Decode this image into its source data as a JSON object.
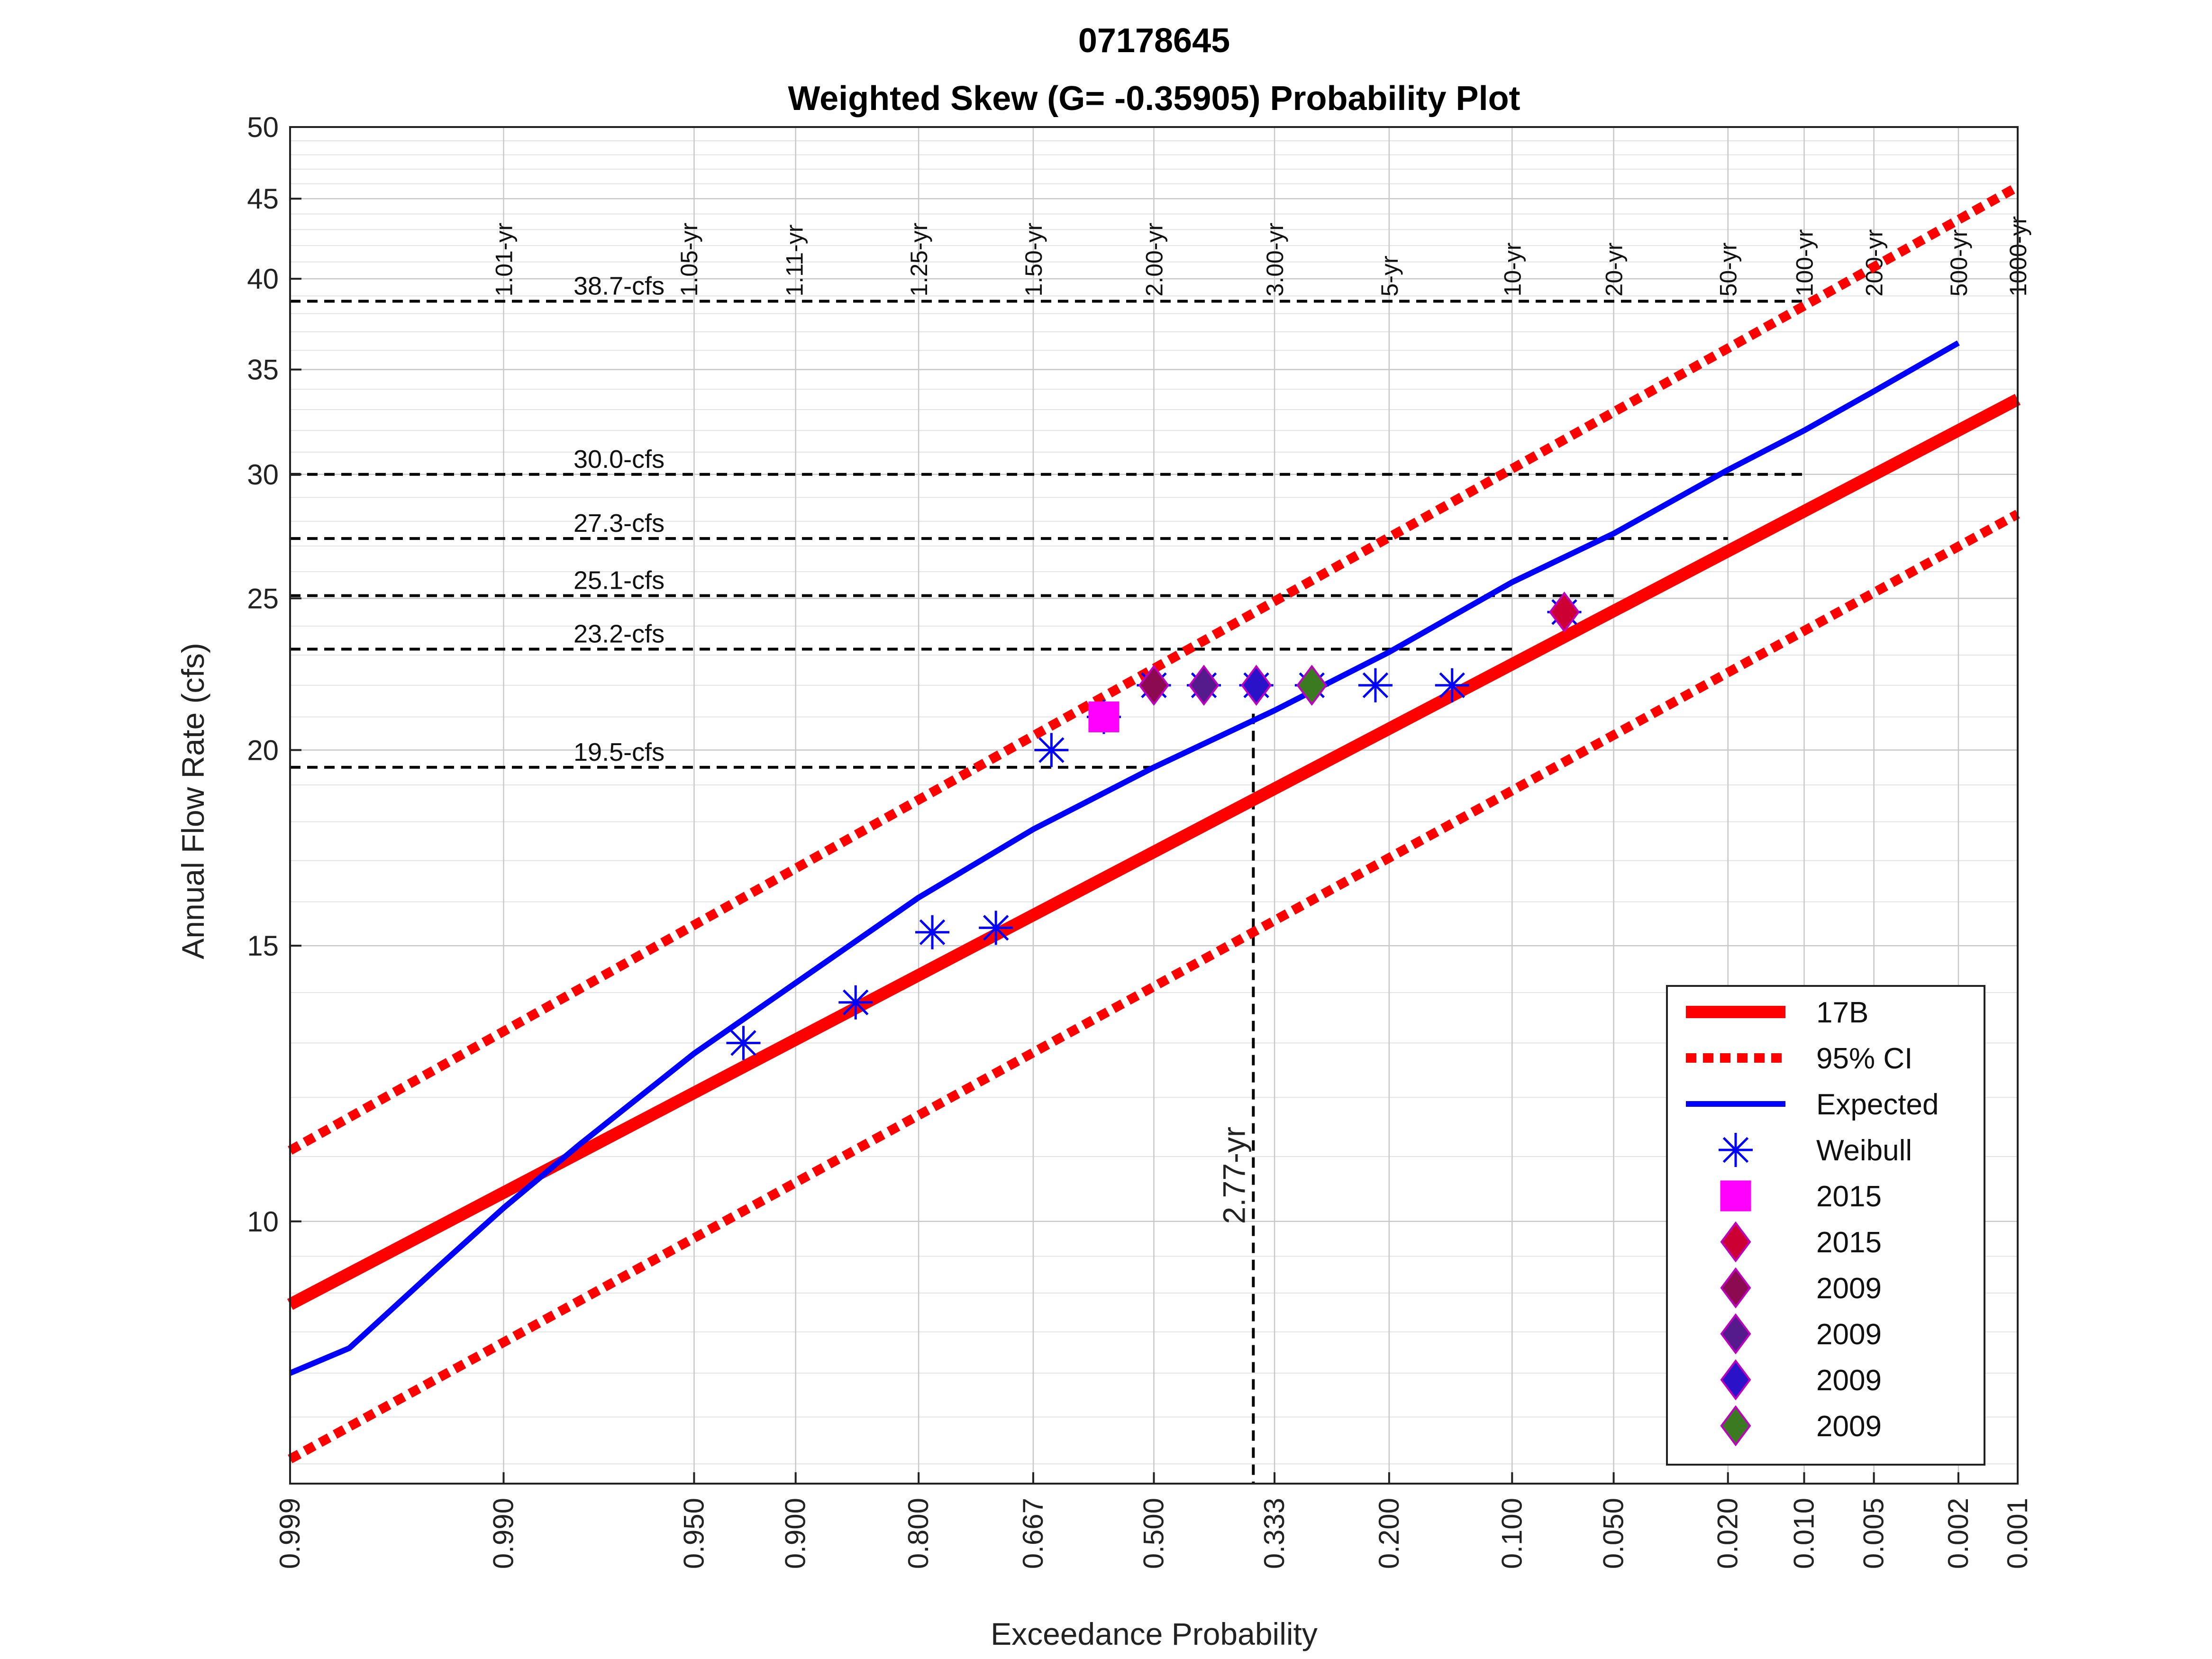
{
  "chart_data": {
    "type": "line",
    "title": "07178645",
    "subtitle": "Weighted Skew (G= -0.35905) Probability Plot",
    "xlabel": "Exceedance Probability",
    "ylabel": "Annual Flow Rate (cfs)",
    "x_scale": "normal-probability (reversed)",
    "y_scale": "log",
    "ylim": [
      6.8,
      50
    ],
    "xlim": [
      0.999,
      0.001
    ],
    "grid": true,
    "legend_position": "bottom-right",
    "x_ticks": [
      {
        "p": 0.999,
        "label": "0.999"
      },
      {
        "p": 0.99,
        "label": "0.990"
      },
      {
        "p": 0.95,
        "label": "0.950"
      },
      {
        "p": 0.9,
        "label": "0.900"
      },
      {
        "p": 0.8,
        "label": "0.800"
      },
      {
        "p": 0.667,
        "label": "0.667"
      },
      {
        "p": 0.5,
        "label": "0.500"
      },
      {
        "p": 0.333,
        "label": "0.333"
      },
      {
        "p": 0.2,
        "label": "0.200"
      },
      {
        "p": 0.1,
        "label": "0.100"
      },
      {
        "p": 0.05,
        "label": "0.050"
      },
      {
        "p": 0.02,
        "label": "0.020"
      },
      {
        "p": 0.01,
        "label": "0.010"
      },
      {
        "p": 0.005,
        "label": "0.005"
      },
      {
        "p": 0.002,
        "label": "0.002"
      },
      {
        "p": 0.001,
        "label": "0.001"
      }
    ],
    "y_ticks": [
      {
        "v": 10,
        "label": "10"
      },
      {
        "v": 15,
        "label": "15"
      },
      {
        "v": 20,
        "label": "20"
      },
      {
        "v": 25,
        "label": "25"
      },
      {
        "v": 30,
        "label": "30"
      },
      {
        "v": 35,
        "label": "35"
      },
      {
        "v": 40,
        "label": "40"
      },
      {
        "v": 45,
        "label": "45"
      },
      {
        "v": 50,
        "label": "50"
      }
    ],
    "return_period_labels": [
      {
        "p": 0.99,
        "label": "1.01-yr"
      },
      {
        "p": 0.952,
        "label": "1.05-yr"
      },
      {
        "p": 0.901,
        "label": "1.11-yr"
      },
      {
        "p": 0.8,
        "label": "1.25-yr"
      },
      {
        "p": 0.667,
        "label": "1.50-yr"
      },
      {
        "p": 0.5,
        "label": "2.00-yr"
      },
      {
        "p": 0.333,
        "label": "3.00-yr"
      },
      {
        "p": 0.2,
        "label": "5-yr"
      },
      {
        "p": 0.1,
        "label": "10-yr"
      },
      {
        "p": 0.05,
        "label": "20-yr"
      },
      {
        "p": 0.02,
        "label": "50-yr"
      },
      {
        "p": 0.01,
        "label": "100-yr"
      },
      {
        "p": 0.005,
        "label": "200-yr"
      },
      {
        "p": 0.002,
        "label": "500-yr"
      },
      {
        "p": 0.001,
        "label": "1000-yr"
      }
    ],
    "horizontal_reference_lines": [
      {
        "v": 38.7,
        "label": "38.7-cfs",
        "x_end_p": 0.01
      },
      {
        "v": 30.0,
        "label": "30.0-cfs",
        "x_end_p": 0.01
      },
      {
        "v": 27.3,
        "label": "27.3-cfs",
        "x_end_p": 0.02
      },
      {
        "v": 25.1,
        "label": "25.1-cfs",
        "x_end_p": 0.05
      },
      {
        "v": 23.2,
        "label": "23.2-cfs",
        "x_end_p": 0.1
      },
      {
        "v": 19.5,
        "label": "19.5-cfs",
        "x_end_p": 0.5
      }
    ],
    "vertical_reference_line": {
      "p": 0.361,
      "label": "2.77-yr"
    },
    "series": [
      {
        "name": "17B",
        "style": "thick-solid",
        "color": "#ff0000",
        "x": [
          0.999,
          0.001
        ],
        "y": [
          8.85,
          33.5
        ]
      },
      {
        "name": "95% CI",
        "style": "dotted",
        "color": "#ff0000",
        "x": [
          0.999,
          0.001
        ],
        "y": [
          11.1,
          45.8
        ]
      },
      {
        "name": "95% CI upper-lower",
        "style": "dotted",
        "color": "#ff0000",
        "x": [
          0.999,
          0.001
        ],
        "y": [
          7.05,
          28.3
        ]
      },
      {
        "name": "Expected",
        "style": "solid",
        "color": "#0000ff",
        "x": [
          0.999,
          0.998,
          0.995,
          0.99,
          0.98,
          0.95,
          0.9,
          0.8,
          0.667,
          0.5,
          0.333,
          0.2,
          0.1,
          0.05,
          0.02,
          0.01,
          0.005,
          0.002
        ],
        "y": [
          8.0,
          8.3,
          9.3,
          10.2,
          11.2,
          12.8,
          14.2,
          16.1,
          17.8,
          19.5,
          21.2,
          23.1,
          25.6,
          27.5,
          30.2,
          32.0,
          33.9,
          36.4
        ]
      }
    ],
    "weibull_points": {
      "name": "Weibull",
      "color": "#0000ff",
      "x": [
        0.929,
        0.857,
        0.786,
        0.714,
        0.643,
        0.571,
        0.5,
        0.429,
        0.357,
        0.286,
        0.214,
        0.143,
        0.071
      ],
      "y": [
        13.0,
        13.8,
        15.3,
        15.4,
        20.0,
        21.0,
        22.0,
        22.0,
        22.0,
        22.0,
        22.0,
        22.0,
        24.5
      ]
    },
    "highlight_points": [
      {
        "label": "2015",
        "marker": "square",
        "color": "#ff00ff",
        "x": 0.571,
        "y": 21.0
      },
      {
        "label": "2015",
        "marker": "diamond",
        "color": "#cc0033",
        "x": 0.071,
        "y": 24.5
      },
      {
        "label": "2009",
        "marker": "diamond",
        "color": "#8b0a50",
        "x": 0.5,
        "y": 22.0
      },
      {
        "label": "2009",
        "marker": "diamond",
        "color": "#551a8b",
        "x": 0.429,
        "y": 22.0
      },
      {
        "label": "2009",
        "marker": "diamond",
        "color": "#2a12c8",
        "x": 0.357,
        "y": 22.0
      },
      {
        "label": "2009",
        "marker": "diamond",
        "color": "#3c7a22",
        "x": 0.286,
        "y": 22.0
      }
    ],
    "legend": [
      {
        "label": "17B",
        "kind": "thick-line",
        "color": "#ff0000"
      },
      {
        "label": "95% CI",
        "kind": "dotted-line",
        "color": "#ff0000"
      },
      {
        "label": "Expected",
        "kind": "line",
        "color": "#0000ff"
      },
      {
        "label": "Weibull",
        "kind": "asterisk",
        "color": "#0000ff"
      },
      {
        "label": "2015",
        "kind": "square",
        "color": "#ff00ff"
      },
      {
        "label": "2015",
        "kind": "diamond",
        "color": "#cc0033"
      },
      {
        "label": "2009",
        "kind": "diamond",
        "color": "#8b0a50"
      },
      {
        "label": "2009",
        "kind": "diamond",
        "color": "#551a8b"
      },
      {
        "label": "2009",
        "kind": "diamond",
        "color": "#2a12c8"
      },
      {
        "label": "2009",
        "kind": "diamond",
        "color": "#3c7a22"
      }
    ]
  }
}
